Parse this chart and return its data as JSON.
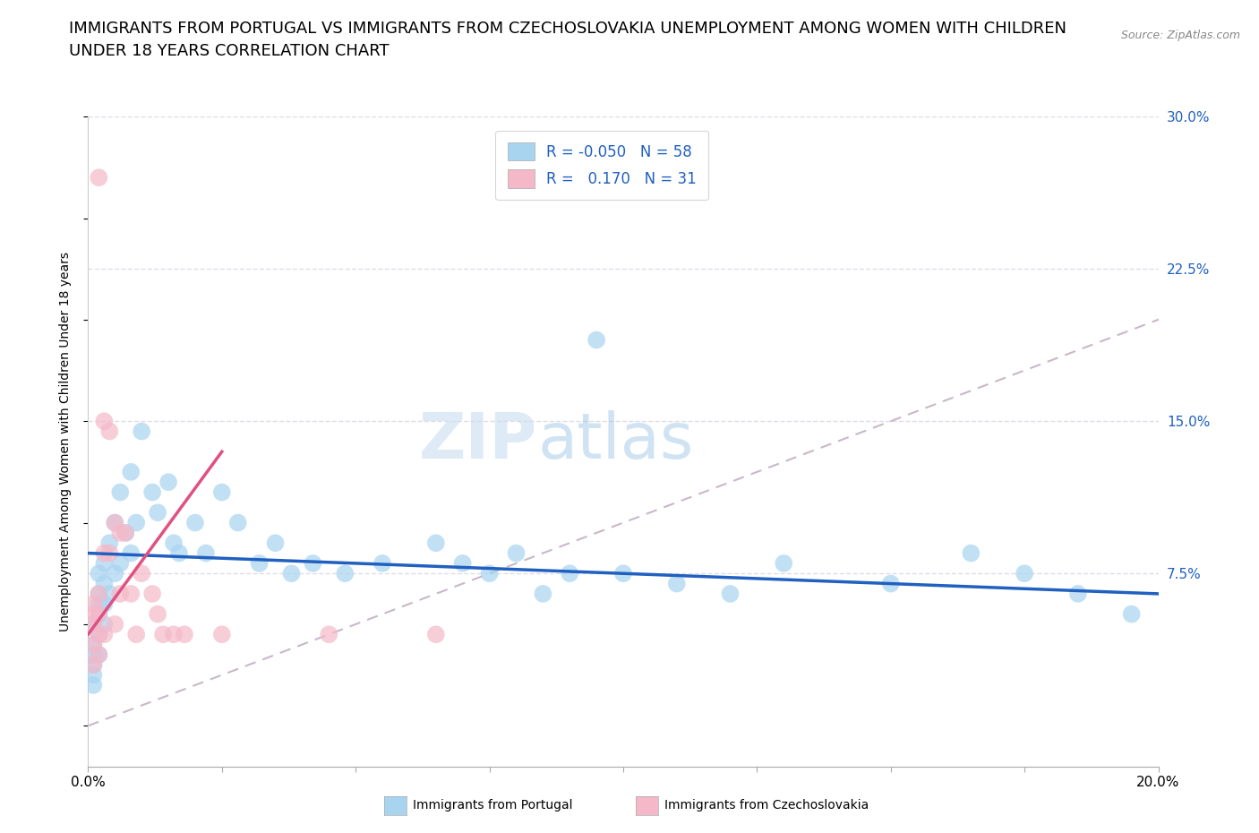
{
  "title": "IMMIGRANTS FROM PORTUGAL VS IMMIGRANTS FROM CZECHOSLOVAKIA UNEMPLOYMENT AMONG WOMEN WITH CHILDREN\nUNDER 18 YEARS CORRELATION CHART",
  "source": "Source: ZipAtlas.com",
  "ylabel": "Unemployment Among Women with Children Under 18 years",
  "xlim": [
    0.0,
    0.2
  ],
  "ylim": [
    -0.02,
    0.3
  ],
  "xticks": [
    0.0,
    0.025,
    0.05,
    0.075,
    0.1,
    0.125,
    0.15,
    0.175,
    0.2
  ],
  "xticklabels": [
    "0.0%",
    "",
    "",
    "",
    "",
    "",
    "",
    "",
    "20.0%"
  ],
  "ytick_positions": [
    0.075,
    0.15,
    0.225,
    0.3
  ],
  "ytick_labels": [
    "7.5%",
    "15.0%",
    "22.5%",
    "30.0%"
  ],
  "watermark_zip": "ZIP",
  "watermark_atlas": "atlas",
  "legend_R1": "-0.050",
  "legend_N1": "58",
  "legend_R2": "0.170",
  "legend_N2": "31",
  "color_portugal": "#a8d4f0",
  "color_czech": "#f5b8c8",
  "trendline_portugal_color": "#2060c0",
  "trendline_czech_color": "#e05080",
  "trendline_diagonal_color": "#c8b8c8",
  "grid_color": "#e0dce8",
  "background_color": "#FFFFFF",
  "title_fontsize": 13,
  "axis_label_fontsize": 10,
  "tick_fontsize": 11,
  "legend_fontsize": 12,
  "portugal_x": [
    0.001,
    0.001,
    0.001,
    0.001,
    0.001,
    0.001,
    0.002,
    0.002,
    0.002,
    0.002,
    0.002,
    0.002,
    0.003,
    0.003,
    0.003,
    0.003,
    0.004,
    0.004,
    0.005,
    0.005,
    0.006,
    0.006,
    0.007,
    0.008,
    0.008,
    0.009,
    0.01,
    0.012,
    0.013,
    0.015,
    0.016,
    0.017,
    0.02,
    0.022,
    0.025,
    0.028,
    0.032,
    0.035,
    0.038,
    0.042,
    0.048,
    0.055,
    0.065,
    0.07,
    0.075,
    0.08,
    0.085,
    0.09,
    0.095,
    0.1,
    0.11,
    0.12,
    0.13,
    0.15,
    0.165,
    0.175,
    0.185,
    0.195
  ],
  "portugal_y": [
    0.05,
    0.04,
    0.035,
    0.03,
    0.025,
    0.02,
    0.075,
    0.065,
    0.06,
    0.055,
    0.045,
    0.035,
    0.08,
    0.07,
    0.06,
    0.05,
    0.09,
    0.065,
    0.1,
    0.075,
    0.115,
    0.08,
    0.095,
    0.125,
    0.085,
    0.1,
    0.145,
    0.115,
    0.105,
    0.12,
    0.09,
    0.085,
    0.1,
    0.085,
    0.115,
    0.1,
    0.08,
    0.09,
    0.075,
    0.08,
    0.075,
    0.08,
    0.09,
    0.08,
    0.075,
    0.085,
    0.065,
    0.075,
    0.19,
    0.075,
    0.07,
    0.065,
    0.08,
    0.07,
    0.085,
    0.075,
    0.065,
    0.055
  ],
  "czech_x": [
    0.001,
    0.001,
    0.001,
    0.001,
    0.001,
    0.002,
    0.002,
    0.002,
    0.002,
    0.002,
    0.003,
    0.003,
    0.003,
    0.004,
    0.004,
    0.005,
    0.005,
    0.006,
    0.006,
    0.007,
    0.008,
    0.009,
    0.01,
    0.012,
    0.013,
    0.014,
    0.016,
    0.018,
    0.025,
    0.045,
    0.065
  ],
  "czech_y": [
    0.06,
    0.055,
    0.05,
    0.04,
    0.03,
    0.27,
    0.065,
    0.055,
    0.045,
    0.035,
    0.15,
    0.085,
    0.045,
    0.145,
    0.085,
    0.1,
    0.05,
    0.095,
    0.065,
    0.095,
    0.065,
    0.045,
    0.075,
    0.065,
    0.055,
    0.045,
    0.045,
    0.045,
    0.045,
    0.045,
    0.045
  ]
}
